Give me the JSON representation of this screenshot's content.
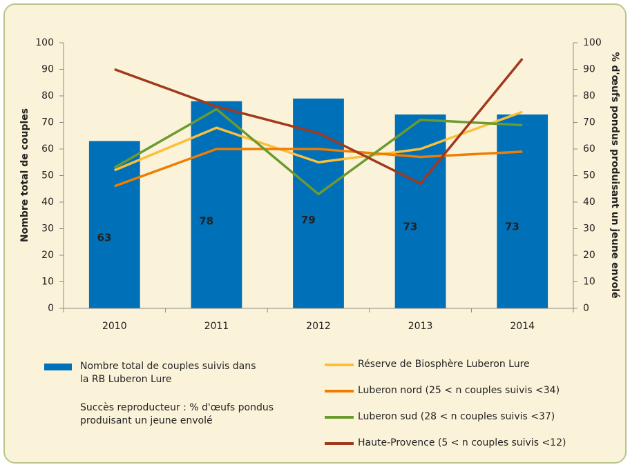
{
  "chart_data": {
    "type": "bar_line",
    "y_label": "Nombre total de couples",
    "y2_label": "% d'œufs pondus produisant un jeune envolé",
    "categories": [
      "2010",
      "2011",
      "2012",
      "2013",
      "2014"
    ],
    "series": [
      {
        "name": "Nombre total de couples suivis dans la RB Luberon Lure",
        "color": "#0070b8",
        "type": "bar",
        "values": [
          63,
          78,
          79,
          73,
          73
        ]
      },
      {
        "name": "Réserve de Biosphère Luberon Lure",
        "color": "#fbbf3a",
        "type": "line",
        "axis": "y2",
        "values": [
          52,
          68,
          55,
          60,
          74
        ]
      },
      {
        "name": "Luberon nord (25 < n couples suivis <34)",
        "color": "#ef7d00",
        "type": "line",
        "axis": "y2",
        "values": [
          46,
          60,
          60,
          57,
          59
        ]
      },
      {
        "name": "Luberon sud (28 < n couples suivis <37)",
        "color": "#6b9a2f",
        "type": "line",
        "axis": "y2",
        "values": [
          53,
          75,
          43,
          71,
          69
        ]
      },
      {
        "name": "Haute-Provence (5 < n couples suivis <12)",
        "color": "#a1391c",
        "type": "line",
        "axis": "y2",
        "values": [
          90,
          76,
          66,
          47,
          94
        ]
      }
    ],
    "legend_note": "Succès reproducteur : % d'œufs pondus produisant un jeune envolé",
    "ylim": [
      0,
      100
    ],
    "yticks": [
      0,
      10,
      20,
      30,
      40,
      50,
      60,
      70,
      80,
      90,
      100
    ],
    "y2lim": [
      0,
      100
    ],
    "y2ticks": [
      0,
      10,
      20,
      30,
      40,
      50,
      60,
      70,
      80,
      90,
      100
    ],
    "grid": false
  }
}
